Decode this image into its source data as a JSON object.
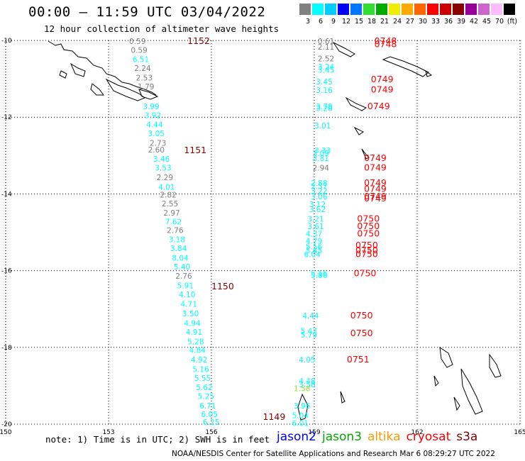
{
  "header": {
    "title": "00:00 – 11:59 UTC 03/04/2022",
    "subtitle": "12 hour collection of altimeter wave heights"
  },
  "colorbar": {
    "unit_label": "(ft)",
    "colors": [
      "#808080",
      "#00ffff",
      "#00ccff",
      "#0000ff",
      "#0077ff",
      "#33dd33",
      "#00aa00",
      "#eeee00",
      "#ffaa00",
      "#ff6600",
      "#ff0000",
      "#cc0000",
      "#880000",
      "#990099",
      "#cc66cc",
      "#ffbbff",
      "#000000"
    ],
    "labels": [
      "3",
      "6",
      "9",
      "12",
      "15",
      "18",
      "21",
      "24",
      "27",
      "30",
      "33",
      "36",
      "39",
      "42",
      "45",
      "70",
      "(ft)"
    ]
  },
  "axes": {
    "x_ticks": [
      "150",
      "153",
      "156",
      "159",
      "162",
      "165"
    ],
    "y_ticks": [
      "-10",
      "-12",
      "-14",
      "-16",
      "-18",
      "-20"
    ]
  },
  "tracks": {
    "west": {
      "times": [
        {
          "text": "1152",
          "lon": 155.3,
          "lat": -10.0
        },
        {
          "text": "1151",
          "lon": 155.2,
          "lat": -12.85
        },
        {
          "text": "1150",
          "lon": 156.0,
          "lat": -16.4
        },
        {
          "text": "1149",
          "lon": 157.5,
          "lat": -19.8
        }
      ],
      "labels": [
        {
          "text": "0.59",
          "lon": 153.6,
          "lat": -10.0,
          "color": "#808080"
        },
        {
          "text": "0.59",
          "lon": 153.65,
          "lat": -10.23,
          "color": "#808080"
        },
        {
          "text": "6.51",
          "lon": 153.7,
          "lat": -10.47,
          "color": "#00ffff"
        },
        {
          "text": "2.24",
          "lon": 153.75,
          "lat": -10.7,
          "color": "#808080"
        },
        {
          "text": "2.53",
          "lon": 153.8,
          "lat": -10.95,
          "color": "#808080"
        },
        {
          "text": "1.79",
          "lon": 153.85,
          "lat": -11.18,
          "color": "#808080"
        },
        {
          "text": "3.99",
          "lon": 154.0,
          "lat": -11.7,
          "color": "#00ffff"
        },
        {
          "text": "3.92",
          "lon": 154.05,
          "lat": -11.93,
          "color": "#00ffff"
        },
        {
          "text": "4.44",
          "lon": 154.1,
          "lat": -12.17,
          "color": "#00ffff"
        },
        {
          "text": "3.05",
          "lon": 154.15,
          "lat": -12.4,
          "color": "#00ffff"
        },
        {
          "text": "2.73",
          "lon": 154.2,
          "lat": -12.65,
          "color": "#808080"
        },
        {
          "text": "2.60",
          "lon": 154.15,
          "lat": -12.83,
          "color": "#808080"
        },
        {
          "text": "3.46",
          "lon": 154.3,
          "lat": -13.07,
          "color": "#00ffff"
        },
        {
          "text": "3.53",
          "lon": 154.35,
          "lat": -13.3,
          "color": "#00ffff"
        },
        {
          "text": "2.29",
          "lon": 154.4,
          "lat": -13.55,
          "color": "#808080"
        },
        {
          "text": "4.01",
          "lon": 154.45,
          "lat": -13.8,
          "color": "#00ffff"
        },
        {
          "text": "2.82",
          "lon": 154.5,
          "lat": -14.0,
          "color": "#808080"
        },
        {
          "text": "2.55",
          "lon": 154.55,
          "lat": -14.23,
          "color": "#808080"
        },
        {
          "text": "2.97",
          "lon": 154.6,
          "lat": -14.47,
          "color": "#808080"
        },
        {
          "text": "7.62",
          "lon": 154.65,
          "lat": -14.7,
          "color": "#00ffff"
        },
        {
          "text": "2.76",
          "lon": 154.7,
          "lat": -14.93,
          "color": "#808080"
        },
        {
          "text": "3.18",
          "lon": 154.75,
          "lat": -15.17,
          "color": "#00ffff"
        },
        {
          "text": "3.84",
          "lon": 154.8,
          "lat": -15.4,
          "color": "#00ffff"
        },
        {
          "text": "8.04",
          "lon": 154.85,
          "lat": -15.65,
          "color": "#00ffff"
        },
        {
          "text": "5.40",
          "lon": 154.9,
          "lat": -15.88,
          "color": "#00ffff"
        },
        {
          "text": "2.76",
          "lon": 154.95,
          "lat": -16.12,
          "color": "#808080"
        },
        {
          "text": "5.91",
          "lon": 155.0,
          "lat": -16.37,
          "color": "#00ffff"
        },
        {
          "text": "4.10",
          "lon": 155.05,
          "lat": -16.6,
          "color": "#00ffff"
        },
        {
          "text": "4.71",
          "lon": 155.1,
          "lat": -16.85,
          "color": "#00ffff"
        },
        {
          "text": "3.50",
          "lon": 155.15,
          "lat": -17.1,
          "color": "#00ffff"
        },
        {
          "text": "4.94",
          "lon": 155.2,
          "lat": -17.35,
          "color": "#00ffff"
        },
        {
          "text": "4.91",
          "lon": 155.25,
          "lat": -17.58,
          "color": "#00ffff"
        },
        {
          "text": "5.28",
          "lon": 155.3,
          "lat": -17.83,
          "color": "#00ffff"
        },
        {
          "text": "4.84",
          "lon": 155.35,
          "lat": -18.05,
          "color": "#00ffff"
        },
        {
          "text": "4.92",
          "lon": 155.4,
          "lat": -18.3,
          "color": "#00ffff"
        },
        {
          "text": "5.16",
          "lon": 155.45,
          "lat": -18.55,
          "color": "#00ffff"
        },
        {
          "text": "5.55",
          "lon": 155.5,
          "lat": -18.78,
          "color": "#00ffff"
        },
        {
          "text": "5.62",
          "lon": 155.55,
          "lat": -19.02,
          "color": "#00ffff"
        },
        {
          "text": "5.25",
          "lon": 155.6,
          "lat": -19.25,
          "color": "#00ffff"
        },
        {
          "text": "6.71",
          "lon": 155.65,
          "lat": -19.5,
          "color": "#00ffff"
        },
        {
          "text": "6.05",
          "lon": 155.7,
          "lat": -19.72,
          "color": "#00ffff"
        },
        {
          "text": "6.25",
          "lon": 155.75,
          "lat": -19.93,
          "color": "#00ffff"
        }
      ]
    },
    "east": {
      "times": [
        {
          "text": "0748",
          "lon": 160.75,
          "lat": -10.0
        },
        {
          "text": "0748",
          "lon": 160.75,
          "lat": -10.08
        },
        {
          "text": "0749",
          "lon": 160.65,
          "lat": -11.0
        },
        {
          "text": "0749",
          "lon": 160.65,
          "lat": -11.27
        },
        {
          "text": "0749",
          "lon": 160.55,
          "lat": -11.7
        },
        {
          "text": "0749",
          "lon": 160.45,
          "lat": -13.05
        },
        {
          "text": "0749",
          "lon": 160.45,
          "lat": -13.3
        },
        {
          "text": "0749",
          "lon": 160.45,
          "lat": -13.7
        },
        {
          "text": "0749",
          "lon": 160.45,
          "lat": -13.85
        },
        {
          "text": "0749",
          "lon": 160.45,
          "lat": -14.05
        },
        {
          "text": "0749",
          "lon": 160.45,
          "lat": -14.1
        },
        {
          "text": "0750",
          "lon": 160.25,
          "lat": -14.63
        },
        {
          "text": "0750",
          "lon": 160.25,
          "lat": -14.82
        },
        {
          "text": "0750",
          "lon": 160.25,
          "lat": -15.02
        },
        {
          "text": "0750",
          "lon": 160.2,
          "lat": -15.32
        },
        {
          "text": "0750",
          "lon": 160.2,
          "lat": -15.45
        },
        {
          "text": "0750",
          "lon": 160.2,
          "lat": -15.55
        },
        {
          "text": "0750",
          "lon": 160.15,
          "lat": -16.05
        },
        {
          "text": "0750",
          "lon": 160.05,
          "lat": -17.15
        },
        {
          "text": "0750",
          "lon": 160.05,
          "lat": -17.62
        },
        {
          "text": "0751",
          "lon": 159.95,
          "lat": -18.3
        }
      ],
      "labels": [
        {
          "text": "0.61",
          "lon": 159.1,
          "lat": -10.0,
          "color": "#808080"
        },
        {
          "text": "2.11",
          "lon": 159.1,
          "lat": -10.15,
          "color": "#808080"
        },
        {
          "text": "2.52",
          "lon": 159.1,
          "lat": -10.45,
          "color": "#808080"
        },
        {
          "text": "3.24",
          "lon": 159.1,
          "lat": -10.67,
          "color": "#00ffff"
        },
        {
          "text": "3.45",
          "lon": 159.1,
          "lat": -10.75,
          "color": "#00ffff"
        },
        {
          "text": "3.45",
          "lon": 159.05,
          "lat": -11.05,
          "color": "#00ffff"
        },
        {
          "text": "3.16",
          "lon": 159.05,
          "lat": -11.28,
          "color": "#00ffff"
        },
        {
          "text": "3.78",
          "lon": 159.05,
          "lat": -11.7,
          "color": "#00ffff"
        },
        {
          "text": "3.28",
          "lon": 159.05,
          "lat": -11.75,
          "color": "#00ffff"
        },
        {
          "text": "3.01",
          "lon": 159.0,
          "lat": -12.2,
          "color": "#00ffff"
        },
        {
          "text": "3.33",
          "lon": 159.0,
          "lat": -12.85,
          "color": "#00ffff"
        },
        {
          "text": "3.09",
          "lon": 158.95,
          "lat": -12.92,
          "color": "#00ffff"
        },
        {
          "text": "3.81",
          "lon": 158.95,
          "lat": -13.05,
          "color": "#00ffff"
        },
        {
          "text": "2.94",
          "lon": 158.95,
          "lat": -13.3,
          "color": "#808080"
        },
        {
          "text": "2.88",
          "lon": 158.9,
          "lat": -13.7,
          "color": "#00ffff"
        },
        {
          "text": "2.57",
          "lon": 158.9,
          "lat": -13.78,
          "color": "#00ffff"
        },
        {
          "text": "3.22",
          "lon": 158.9,
          "lat": -13.9,
          "color": "#00ffff"
        },
        {
          "text": "3.06",
          "lon": 158.9,
          "lat": -14.05,
          "color": "#00ffff"
        },
        {
          "text": "3.12",
          "lon": 158.85,
          "lat": -14.25,
          "color": "#00ffff"
        },
        {
          "text": "3.62",
          "lon": 158.85,
          "lat": -14.38,
          "color": "#00ffff"
        },
        {
          "text": "3.21",
          "lon": 158.8,
          "lat": -14.63,
          "color": "#00ffff"
        },
        {
          "text": "3.61",
          "lon": 158.8,
          "lat": -14.82,
          "color": "#00ffff"
        },
        {
          "text": "4.37",
          "lon": 158.75,
          "lat": -15.02,
          "color": "#00ffff"
        },
        {
          "text": "4.79",
          "lon": 158.75,
          "lat": -15.2,
          "color": "#00ffff"
        },
        {
          "text": "5.56",
          "lon": 158.75,
          "lat": -15.35,
          "color": "#00ffff"
        },
        {
          "text": "5.45",
          "lon": 158.75,
          "lat": -15.45,
          "color": "#00ffff"
        },
        {
          "text": "6.04",
          "lon": 158.7,
          "lat": -15.55,
          "color": "#00ffff"
        },
        {
          "text": "5.16",
          "lon": 158.9,
          "lat": -16.05,
          "color": "#00ffff"
        },
        {
          "text": "5.86",
          "lon": 158.9,
          "lat": -16.1,
          "color": "#00ffff"
        },
        {
          "text": "4.44",
          "lon": 158.65,
          "lat": -17.15,
          "color": "#00ffff"
        },
        {
          "text": "5.47",
          "lon": 158.6,
          "lat": -17.55,
          "color": "#00ffff"
        },
        {
          "text": "5.79",
          "lon": 158.6,
          "lat": -17.65,
          "color": "#00ffff"
        },
        {
          "text": "4.05",
          "lon": 158.55,
          "lat": -18.3,
          "color": "#00ffff"
        },
        {
          "text": "4.48",
          "lon": 158.55,
          "lat": -18.85,
          "color": "#00ffff"
        },
        {
          "text": "3.58",
          "lon": 158.55,
          "lat": -18.95,
          "color": "#00ffff"
        },
        {
          "text": "1.58",
          "lon": 158.4,
          "lat": -19.05,
          "color": "#99dd33"
        },
        {
          "text": "3.96",
          "lon": 158.4,
          "lat": -19.5,
          "color": "#00ffff"
        },
        {
          "text": "5.04",
          "lon": 158.35,
          "lat": -19.75,
          "color": "#00ffff"
        },
        {
          "text": "6.01",
          "lon": 158.35,
          "lat": -19.95,
          "color": "#00ffff"
        }
      ]
    }
  },
  "footer": {
    "note": "note: 1) Time is in UTC; 2) SWH is in feet",
    "legend": [
      {
        "text": "jason2",
        "color": "#0000ff"
      },
      {
        "text": "jason3",
        "color": "#00aa00"
      },
      {
        "text": "altika",
        "color": "#ff9900"
      },
      {
        "text": "cryosat",
        "color": "#ff0000"
      },
      {
        "text": "s3a",
        "color": "#880000"
      }
    ],
    "credit": "NOAA/NESDIS Center for Satellite Applications and Research   Mar  6 08:29:27 UTC 2022"
  }
}
